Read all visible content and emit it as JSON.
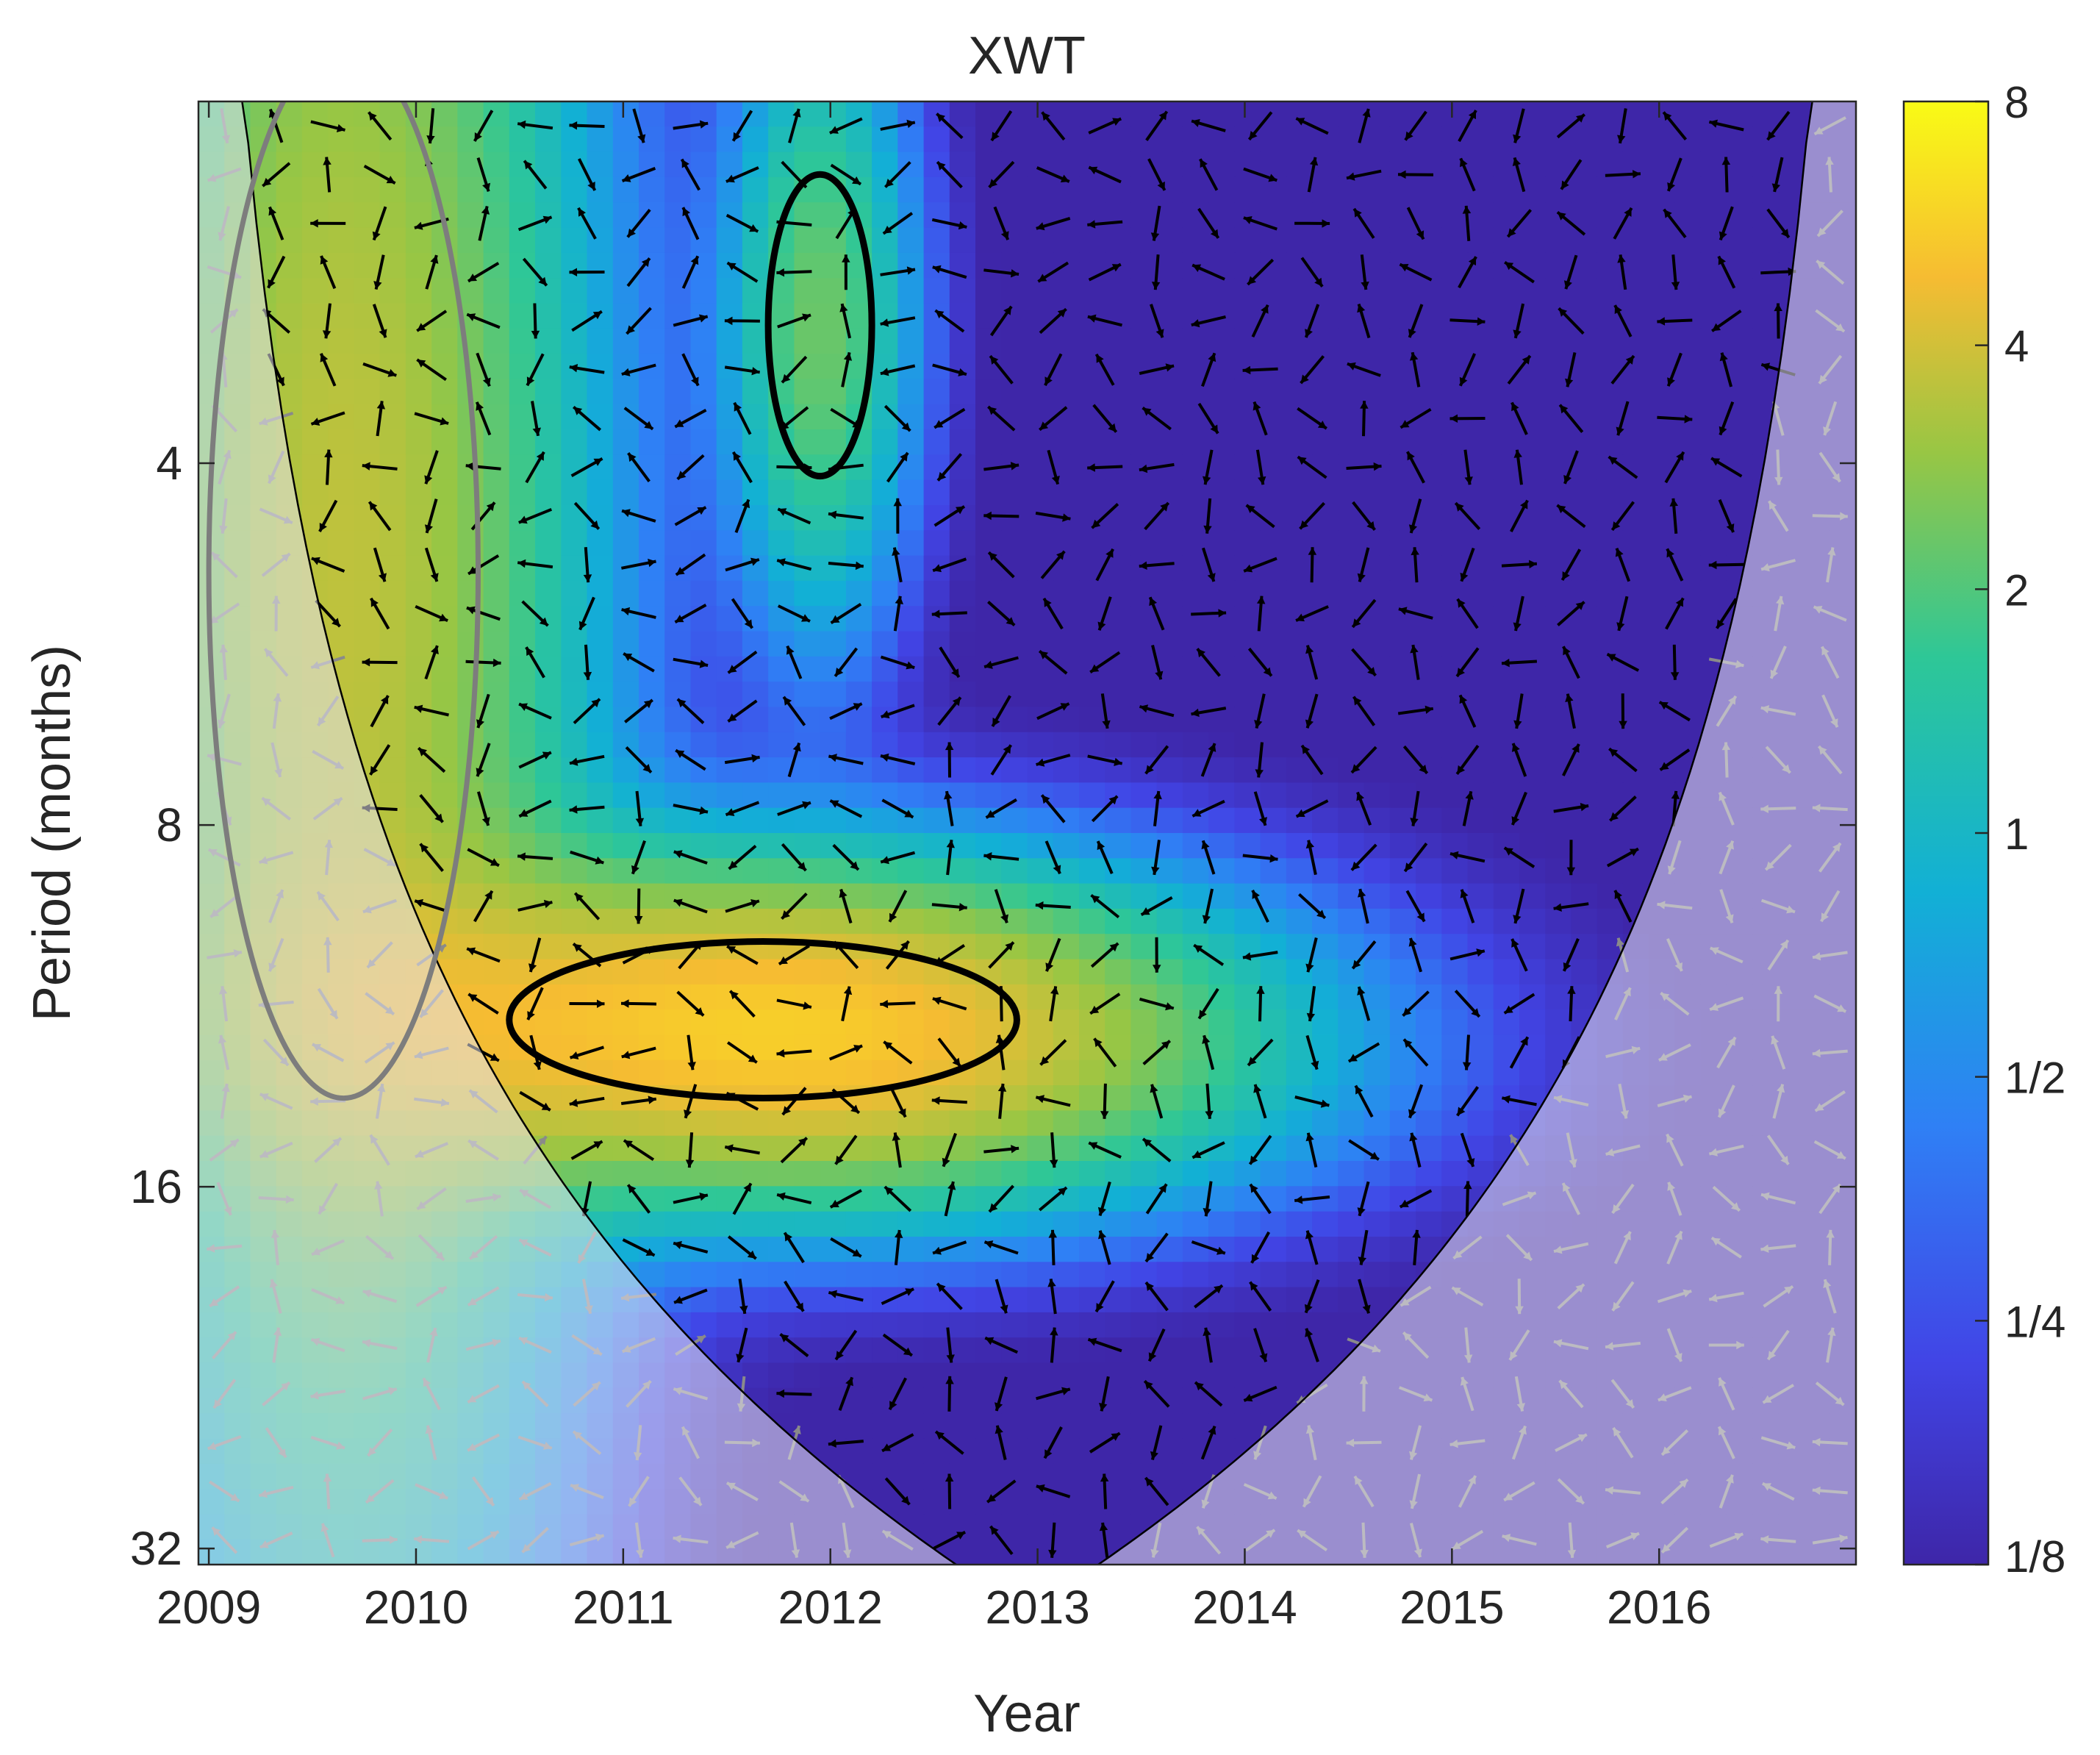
{
  "chart_data": {
    "type": "heatmap",
    "title": "XWT",
    "xlabel": "Year",
    "ylabel": "Period (months)",
    "x_range": [
      2008.95,
      2016.95
    ],
    "y_range": [
      2,
      33
    ],
    "y_scale": "log2",
    "x_ticks": [
      "2009",
      "2010",
      "2011",
      "2012",
      "2013",
      "2014",
      "2015",
      "2016"
    ],
    "y_ticks": [
      "4",
      "8",
      "16",
      "32"
    ],
    "colorbar": {
      "scale": "log2",
      "range": [
        0.125,
        8
      ],
      "ticks": [
        "8",
        "4",
        "2",
        "1",
        "1/2",
        "1/4",
        "1/8"
      ],
      "colors": [
        "#3e26a8",
        "#4145e6",
        "#2f80f5",
        "#12b0d5",
        "#2ec797",
        "#98c644",
        "#f6bc32",
        "#f9fb15"
      ]
    },
    "significant_regions": [
      {
        "period_range": [
          2.3,
          4.1
        ],
        "time_range": [
          2011.7,
          2012.2
        ],
        "power": 1.8
      },
      {
        "period_range": [
          10,
          13.5
        ],
        "time_range": [
          2010.45,
          2012.9
        ],
        "power": 4.5
      },
      {
        "period_range": [
          1.8,
          13.5
        ],
        "time_range": [
          2009.0,
          2010.3
        ],
        "power": 3.0
      }
    ],
    "cone_of_influence": "shaded",
    "phase_arrows": "shown"
  }
}
